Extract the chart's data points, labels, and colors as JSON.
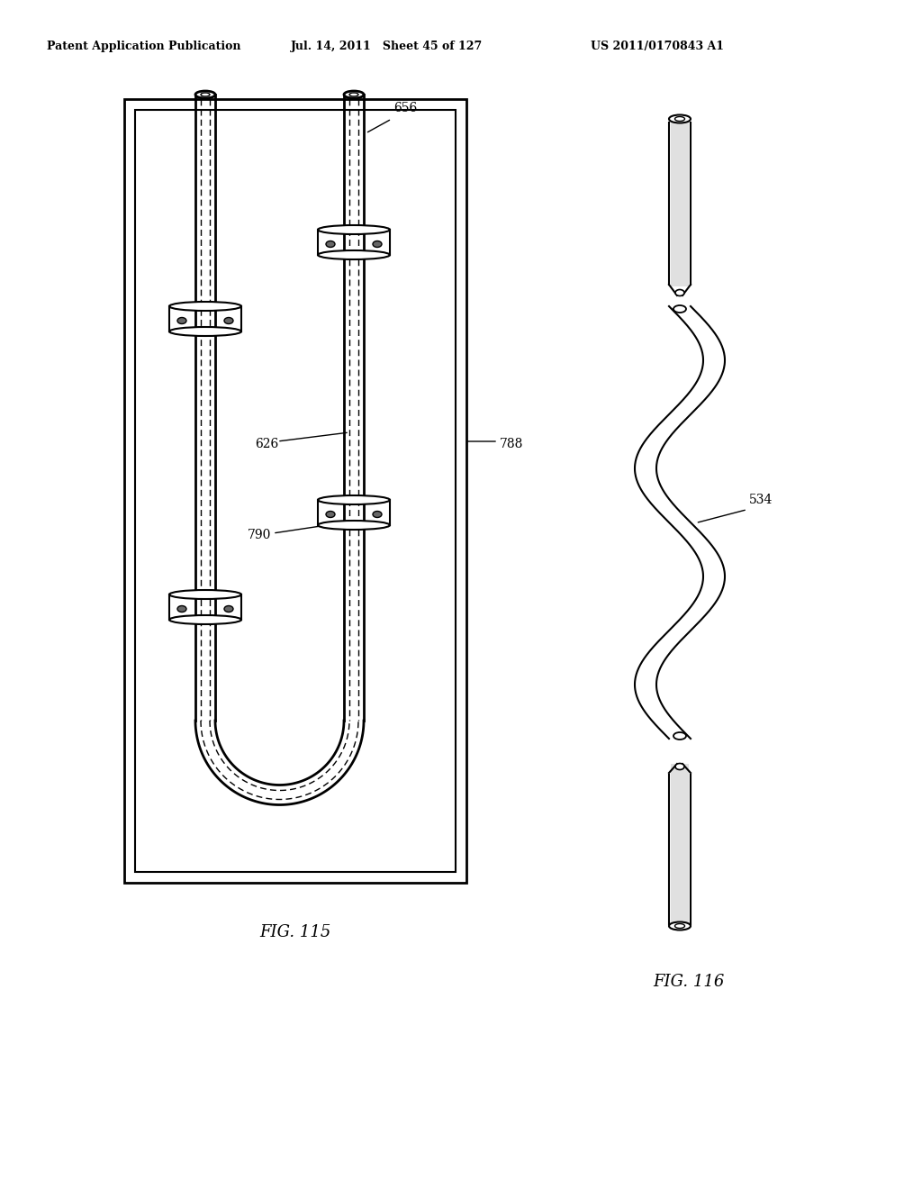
{
  "title_left": "Patent Application Publication",
  "title_mid": "Jul. 14, 2011   Sheet 45 of 127",
  "title_right": "US 2011/0170843 A1",
  "fig115_label": "FIG. 115",
  "fig116_label": "FIG. 116",
  "label_656": "656",
  "label_626": "626",
  "label_788": "788",
  "label_790": "790",
  "label_534": "534",
  "bg_color": "#ffffff",
  "line_color": "#000000"
}
